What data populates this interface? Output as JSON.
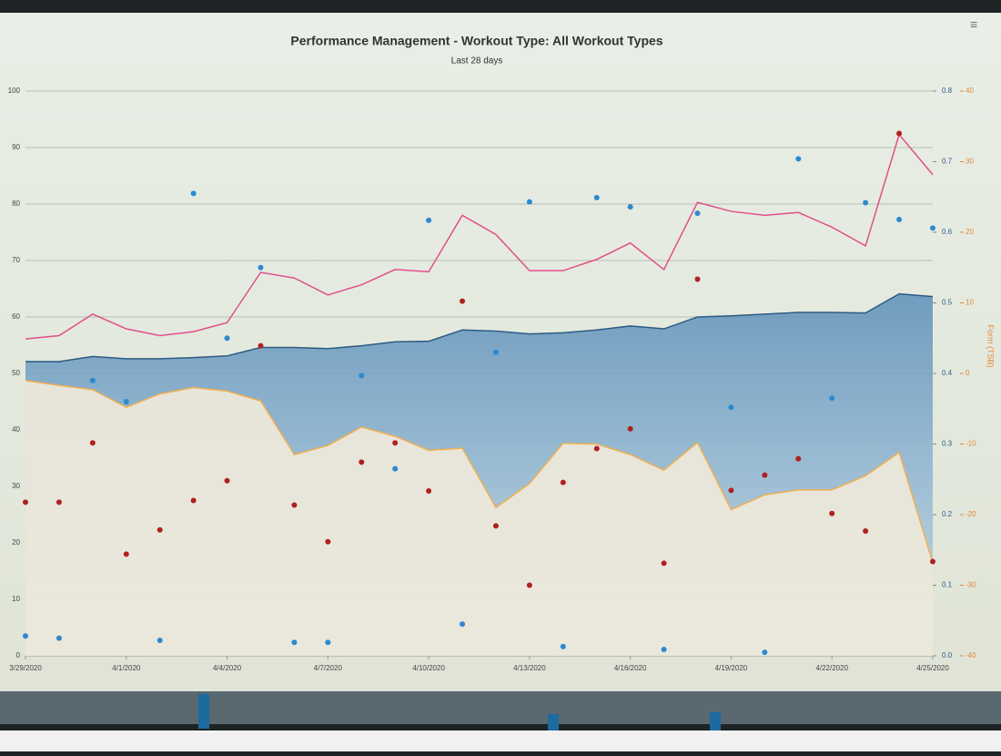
{
  "chart_data": {
    "type": "combo",
    "title": "Performance Management - Workout Type: All Workout Types",
    "subtitle": "Last 28 days",
    "categories": [
      "3/29/2020",
      null,
      null,
      "4/1/2020",
      null,
      null,
      "4/4/2020",
      null,
      null,
      "4/7/2020",
      null,
      null,
      "4/10/2020",
      null,
      null,
      "4/13/2020",
      null,
      null,
      "4/16/2020",
      null,
      null,
      "4/19/2020",
      null,
      null,
      "4/22/2020",
      null,
      null,
      "4/25/2020"
    ],
    "ylim": [
      0,
      100
    ],
    "yticks": [
      0,
      10,
      20,
      30,
      40,
      50,
      60,
      70,
      80,
      90,
      100
    ],
    "y2lim": [
      0,
      0.8
    ],
    "y2ticks": [
      {
        "value": 0,
        "label": "0.0"
      },
      0.1,
      0.2,
      0.3,
      0.4,
      0.5,
      0.6,
      0.7,
      0.8
    ],
    "y3label": "Form (TSB)",
    "y3lim": [
      -40,
      40
    ],
    "y3ticks": [
      -40,
      -30,
      -20,
      -10,
      0,
      10,
      20,
      30,
      40
    ],
    "grid": true,
    "series": [
      {
        "type": "area",
        "color": "#3f76a3",
        "axis": "y",
        "values": [
          52.1,
          52.1,
          53,
          52.6,
          52.6,
          52.8,
          53.1,
          54.6,
          54.6,
          54.4,
          54.9,
          55.6,
          55.7,
          57.7,
          57.5,
          57,
          57.2,
          57.7,
          58.4,
          57.9,
          60,
          60.2,
          60.5,
          60.8,
          60.8,
          60.7,
          64.1,
          63.6
        ]
      },
      {
        "type": "area",
        "color": "#f0b050",
        "axis": "y3",
        "values": [
          -1,
          -1.7,
          -2.3,
          -4.8,
          -2.9,
          -2,
          -2.5,
          -3.9,
          -11.5,
          -10.2,
          -7.6,
          -8.9,
          -10.9,
          -10.6,
          -19,
          -15.6,
          -9.9,
          -10,
          -11.5,
          -13.7,
          -9.8,
          -19.3,
          -17.2,
          -16.5,
          -16.5,
          -14.5,
          -11.2,
          -26.8
        ]
      },
      {
        "type": "line",
        "color": "#e0508a",
        "axis": "y",
        "values": [
          56.1,
          56.7,
          60.5,
          57.9,
          56.7,
          57.4,
          59,
          67.9,
          66.9,
          63.9,
          65.7,
          68.4,
          68,
          78,
          74.6,
          68.2,
          68.2,
          70.2,
          73.1,
          68.4,
          80.3,
          78.7,
          78,
          78.5,
          75.9,
          72.6,
          92.3,
          85.2
        ]
      },
      {
        "type": "scatter",
        "color": "#2a8ad0",
        "axis": "y2",
        "values": [
          0.028,
          0.025,
          0.39,
          0.36,
          0.022,
          0.655,
          0.45,
          0.55,
          0.019,
          0.019,
          0.397,
          0.265,
          0.617,
          0.045,
          0.43,
          0.643,
          0.013,
          0.649,
          0.636,
          0.009,
          0.627,
          0.352,
          0.005,
          0.704,
          0.365,
          0.642,
          0.618,
          0.606
        ]
      },
      {
        "type": "scatter",
        "color": "#b02020",
        "axis": "y",
        "values": [
          27.2,
          27.2,
          37.7,
          18,
          22.3,
          27.5,
          31,
          54.9,
          26.7,
          20.2,
          34.3,
          37.7,
          29.2,
          62.8,
          23,
          12.5,
          30.7,
          36.7,
          40.2,
          16.4,
          66.7,
          29.3,
          32,
          34.9,
          25.2,
          22.1,
          92.5,
          16.7
        ]
      }
    ]
  }
}
